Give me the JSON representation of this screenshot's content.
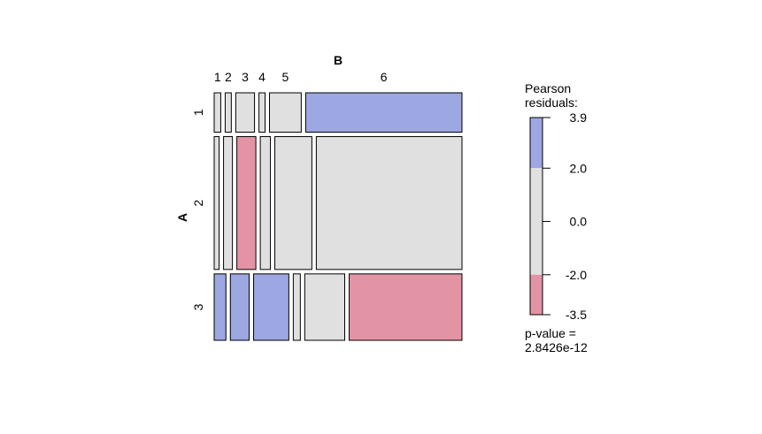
{
  "chart_data": {
    "type": "mosaic",
    "title": "",
    "row_variable": "A",
    "col_variable": "B",
    "rows": [
      "1",
      "2",
      "3"
    ],
    "cols": [
      "1",
      "2",
      "3",
      "4",
      "5",
      "6"
    ],
    "row_proportions": [
      0.16,
      0.54,
      0.27
    ],
    "cells": [
      [
        0.027,
        0.025,
        0.077,
        0.025,
        0.13,
        0.64
      ],
      [
        0.02,
        0.036,
        0.077,
        0.041,
        0.15,
        0.59
      ],
      [
        0.05,
        0.08,
        0.15,
        0.03,
        0.17,
        0.48
      ]
    ],
    "residual_level": [
      [
        "neutral",
        "neutral",
        "neutral",
        "neutral",
        "neutral",
        "positive"
      ],
      [
        "neutral",
        "neutral",
        "negative",
        "neutral",
        "neutral",
        "neutral"
      ],
      [
        "positive",
        "positive",
        "positive",
        "neutral",
        "neutral",
        "negative"
      ]
    ],
    "colors": {
      "positive": "#9da7e2",
      "neutral": "#e0e0e0",
      "negative": "#e294a4",
      "border": "#000000"
    },
    "legend": {
      "title_line1": "Pearson",
      "title_line2": "residuals:",
      "max": 3.9,
      "min": -3.5,
      "ticks": [
        "3.9",
        "2.0",
        "0.0",
        "-2.0",
        "-3.5"
      ],
      "tick_values": [
        3.9,
        2.0,
        0.0,
        -2.0,
        -3.5
      ],
      "bands": [
        {
          "from": 2.0,
          "to": 3.9,
          "level": "positive"
        },
        {
          "from": -2.0,
          "to": 2.0,
          "level": "neutral"
        },
        {
          "from": -3.5,
          "to": -2.0,
          "level": "negative"
        }
      ]
    },
    "pvalue_line1": "p-value =",
    "pvalue_line2": "2.8426e-12"
  }
}
